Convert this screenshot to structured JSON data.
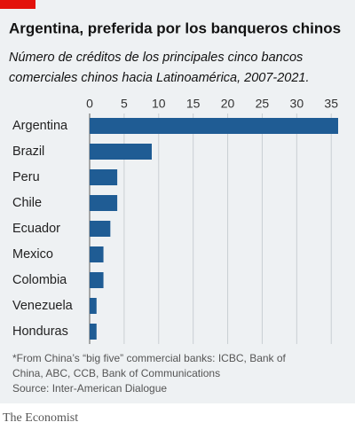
{
  "chart_data": {
    "type": "bar",
    "orientation": "horizontal",
    "title": "Argentina, preferida por los banqueros chinos",
    "subtitle": [
      "Número de créditos de los principales cinco bancos",
      "comerciales chinos hacia Latinoamérica, 2007-2021."
    ],
    "categories": [
      "Argentina",
      "Brazil",
      "Peru",
      "Chile",
      "Ecuador",
      "Mexico",
      "Colombia",
      "Venezuela",
      "Honduras"
    ],
    "values": [
      36,
      9,
      4,
      4,
      3,
      2,
      2,
      1,
      1
    ],
    "color": "#1f5c94",
    "xlim": [
      0,
      36
    ],
    "xticks": [
      0,
      5,
      10,
      15,
      20,
      25,
      30,
      35
    ],
    "grid": true,
    "footnote": [
      "*From China’s “big five” commercial banks: ICBC, Bank of",
      "China, ABC, CCB, Bank of Communications"
    ],
    "source": "Source: Inter-American Dialogue",
    "brand": "The Economist"
  }
}
